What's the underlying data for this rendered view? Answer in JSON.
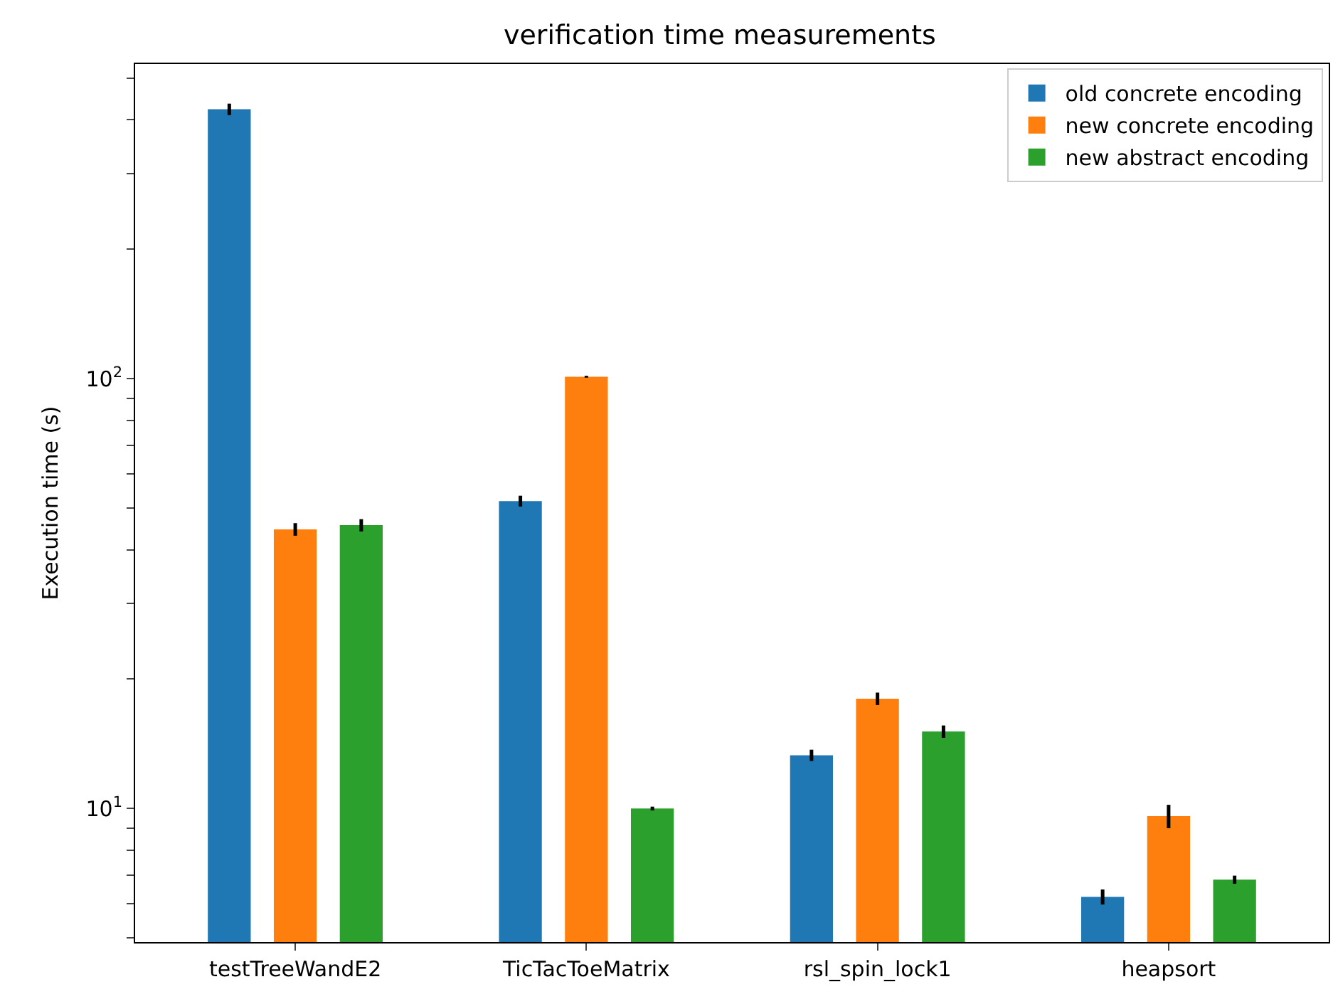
{
  "chart_data": {
    "type": "bar",
    "title": "verification time measurements",
    "ylabel": "Execution time (s)",
    "categories": [
      "testTreeWandE2",
      "TicTacToeMatrix",
      "rsl_spin_lock1",
      "heapsort"
    ],
    "series": [
      {
        "name": "old concrete encoding",
        "color": "#1f77b4",
        "values": [
          423,
          51.9,
          13.3,
          6.23
        ],
        "errors": [
          13,
          1.5,
          0.4,
          0.25
        ]
      },
      {
        "name": "new concrete encoding",
        "color": "#ff7f0e",
        "values": [
          44.6,
          101,
          18.0,
          9.6
        ],
        "errors": [
          1.5,
          0.5,
          0.6,
          0.6
        ]
      },
      {
        "name": "new abstract encoding",
        "color": "#2ca02c",
        "values": [
          45.6,
          10,
          15.1,
          6.83
        ],
        "errors": [
          1.5,
          0.1,
          0.5,
          0.15
        ]
      }
    ],
    "log": "y",
    "ylim": [
      4.89,
      539
    ],
    "yticks": [
      {
        "value": 5,
        "label": null
      },
      {
        "value": 6,
        "label": null
      },
      {
        "value": 7,
        "label": null
      },
      {
        "value": 8,
        "label": null
      },
      {
        "value": 9,
        "label": null
      },
      {
        "value": 10,
        "label": "10$^{1}$"
      },
      {
        "value": 20,
        "label": null
      },
      {
        "value": 30,
        "label": null
      },
      {
        "value": 40,
        "label": null
      },
      {
        "value": 50,
        "label": null
      },
      {
        "value": 60,
        "label": null
      },
      {
        "value": 70,
        "label": null
      },
      {
        "value": 80,
        "label": null
      },
      {
        "value": 90,
        "label": null
      },
      {
        "value": 100,
        "label": "10$^{2}$"
      },
      {
        "value": 200,
        "label": null
      },
      {
        "value": 300,
        "label": null
      },
      {
        "value": 400,
        "label": null
      },
      {
        "value": 500,
        "label": null
      }
    ],
    "legend": "top right"
  }
}
